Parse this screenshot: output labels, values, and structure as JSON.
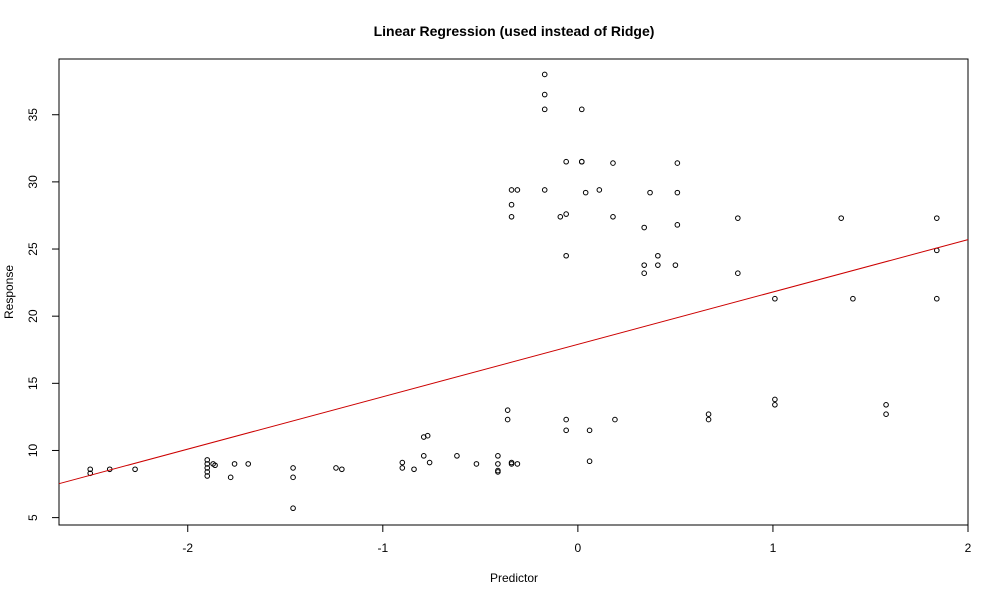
{
  "chart_data": {
    "type": "scatter",
    "title": "Linear Regression (used instead of Ridge)",
    "xlabel": "Predictor",
    "ylabel": "Response",
    "xlim": [
      -2.66,
      2.0
    ],
    "ylim": [
      4.45,
      39.15
    ],
    "xticks": [
      {
        "value": -2,
        "label": "-2"
      },
      {
        "value": -1,
        "label": "-1"
      },
      {
        "value": 0,
        "label": "0"
      },
      {
        "value": 1,
        "label": "1"
      },
      {
        "value": 2,
        "label": "2"
      }
    ],
    "yticks": [
      {
        "value": 5,
        "label": "5"
      },
      {
        "value": 10,
        "label": "10"
      },
      {
        "value": 15,
        "label": "15"
      },
      {
        "value": 20,
        "label": "20"
      },
      {
        "value": 25,
        "label": "25"
      },
      {
        "value": 30,
        "label": "30"
      },
      {
        "value": 35,
        "label": "35"
      }
    ],
    "grid": false,
    "point_color": "#000000",
    "line_color": "#cc0000",
    "regression_line": {
      "intercept": 17.9,
      "slope": 3.9
    },
    "points": [
      [
        -2.5,
        8.6
      ],
      [
        -2.5,
        8.3
      ],
      [
        -2.4,
        8.6
      ],
      [
        -2.27,
        8.6
      ],
      [
        -1.9,
        9.3
      ],
      [
        -1.9,
        9.0
      ],
      [
        -1.9,
        8.7
      ],
      [
        -1.9,
        8.4
      ],
      [
        -1.9,
        8.1
      ],
      [
        -1.87,
        9.0
      ],
      [
        -1.86,
        8.9
      ],
      [
        -1.78,
        8.0
      ],
      [
        -1.76,
        9.0
      ],
      [
        -1.69,
        9.0
      ],
      [
        -1.46,
        8.7
      ],
      [
        -1.46,
        8.0
      ],
      [
        -1.46,
        5.7
      ],
      [
        -1.24,
        8.7
      ],
      [
        -1.21,
        8.6
      ],
      [
        -0.9,
        9.1
      ],
      [
        -0.9,
        8.7
      ],
      [
        -0.84,
        8.6
      ],
      [
        -0.79,
        11.0
      ],
      [
        -0.79,
        9.6
      ],
      [
        -0.77,
        11.1
      ],
      [
        -0.76,
        9.1
      ],
      [
        -0.62,
        9.6
      ],
      [
        -0.52,
        9.0
      ],
      [
        -0.41,
        9.6
      ],
      [
        -0.41,
        9.0
      ],
      [
        -0.41,
        8.5
      ],
      [
        -0.41,
        8.4
      ],
      [
        -0.36,
        13.0
      ],
      [
        -0.36,
        12.3
      ],
      [
        -0.34,
        9.1
      ],
      [
        -0.34,
        9.0
      ],
      [
        -0.31,
        9.0
      ],
      [
        -0.34,
        29.4
      ],
      [
        -0.34,
        28.3
      ],
      [
        -0.34,
        27.4
      ],
      [
        -0.31,
        29.4
      ],
      [
        -0.17,
        38.0
      ],
      [
        -0.17,
        36.5
      ],
      [
        -0.17,
        35.4
      ],
      [
        -0.17,
        29.4
      ],
      [
        -0.09,
        27.4
      ],
      [
        -0.06,
        31.5
      ],
      [
        -0.06,
        27.6
      ],
      [
        -0.06,
        24.5
      ],
      [
        -0.06,
        12.3
      ],
      [
        -0.06,
        11.5
      ],
      [
        0.02,
        35.4
      ],
      [
        0.02,
        31.5
      ],
      [
        0.02,
        31.5
      ],
      [
        0.04,
        29.2
      ],
      [
        0.06,
        11.5
      ],
      [
        0.06,
        9.2
      ],
      [
        0.11,
        29.4
      ],
      [
        0.18,
        31.4
      ],
      [
        0.18,
        27.4
      ],
      [
        0.19,
        12.3
      ],
      [
        0.34,
        26.6
      ],
      [
        0.34,
        23.8
      ],
      [
        0.34,
        23.2
      ],
      [
        0.37,
        29.2
      ],
      [
        0.41,
        24.5
      ],
      [
        0.41,
        23.8
      ],
      [
        0.5,
        23.8
      ],
      [
        0.51,
        31.4
      ],
      [
        0.51,
        29.2
      ],
      [
        0.51,
        26.8
      ],
      [
        0.67,
        12.7
      ],
      [
        0.67,
        12.3
      ],
      [
        0.82,
        27.3
      ],
      [
        0.82,
        23.2
      ],
      [
        1.01,
        21.3
      ],
      [
        1.01,
        13.8
      ],
      [
        1.01,
        13.4
      ],
      [
        1.35,
        27.3
      ],
      [
        1.41,
        21.3
      ],
      [
        1.58,
        13.4
      ],
      [
        1.58,
        12.7
      ],
      [
        1.84,
        27.3
      ],
      [
        1.84,
        24.9
      ],
      [
        1.84,
        21.3
      ]
    ]
  }
}
